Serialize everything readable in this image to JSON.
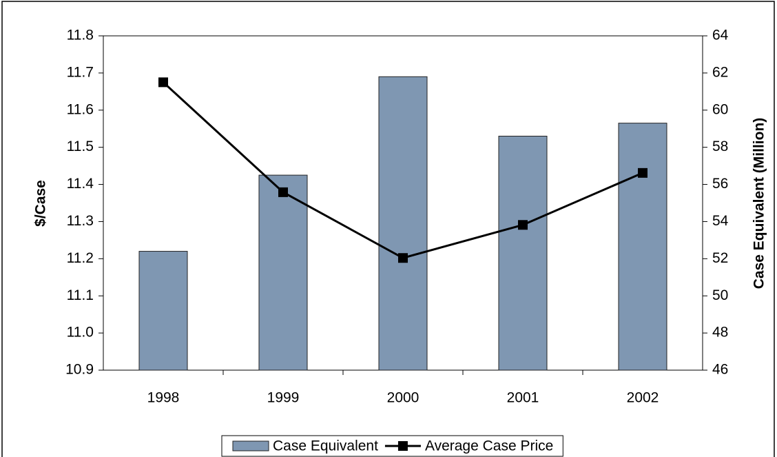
{
  "chart_data": {
    "type": "bar-line",
    "categories": [
      "1998",
      "1999",
      "2000",
      "2001",
      "2002"
    ],
    "y_label": "$/Case",
    "y2_label": "Case Equivalent (Million)",
    "ylim": [
      10.9,
      11.8
    ],
    "yticks": [
      {
        "value": 10.9,
        "label": "10.9"
      },
      {
        "value": 11,
        "label": "11.0"
      },
      11.1,
      11.2,
      11.3,
      11.4,
      11.5,
      11.6,
      11.7,
      11.8
    ],
    "y2lim": [
      46,
      64
    ],
    "y2ticks": [
      46,
      48,
      50,
      52,
      54,
      56,
      58,
      60,
      62,
      64
    ],
    "legend": "bottom",
    "series": [
      {
        "name": "Case Equivalent",
        "type": "bar",
        "axis": "y2",
        "color": "#7f97b2",
        "values": [
          52.4,
          56.5,
          61.8,
          58.6,
          59.3
        ]
      },
      {
        "name": "Average Case Price",
        "type": "line",
        "axis": "y",
        "color": "#000000",
        "values": [
          11.675,
          11.379,
          11.202,
          11.291,
          11.431
        ]
      }
    ]
  }
}
